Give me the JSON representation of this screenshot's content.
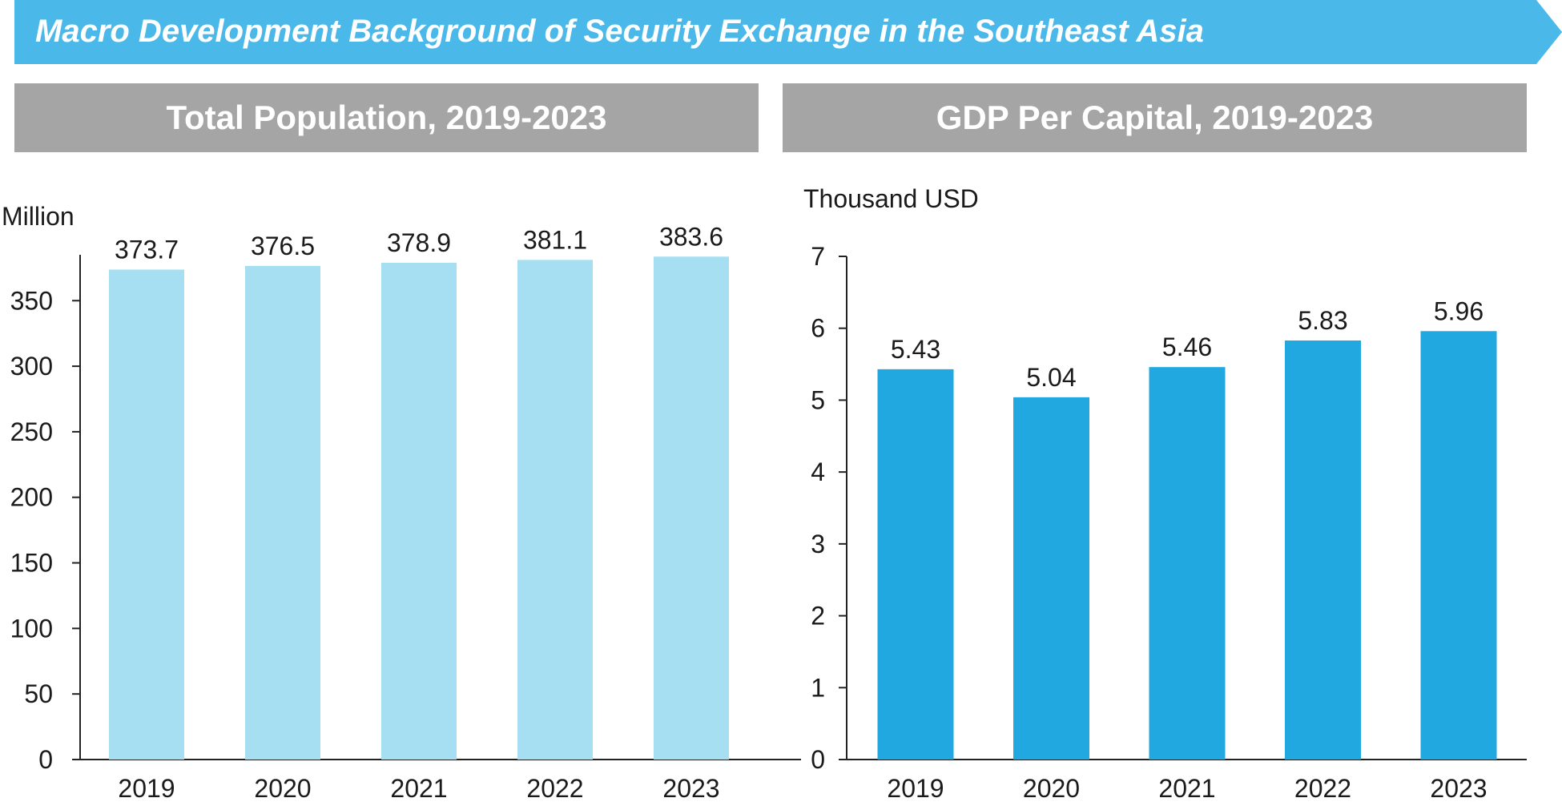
{
  "banner": {
    "title": "Macro Development Background of Security Exchange in the Southeast Asia",
    "color": "#4ab9ea"
  },
  "panels": {
    "left_title": "Total Population, 2019-2023",
    "right_title": "GDP Per Capital, 2019-2023",
    "header_color": "#a6a5a6"
  },
  "chart_data": [
    {
      "type": "bar",
      "title": "Total Population, 2019-2023",
      "unit_label": "Million",
      "categories": [
        "2019",
        "2020",
        "2021",
        "2022",
        "2023"
      ],
      "values": [
        373.7,
        376.5,
        378.9,
        381.1,
        383.6
      ],
      "data_labels": [
        "373.7",
        "376.5",
        "378.9",
        "381.1",
        "383.6"
      ],
      "ylim": [
        0,
        385
      ],
      "yticks": [
        0,
        50,
        100,
        150,
        200,
        250,
        300,
        350
      ],
      "bar_color": "#a6dff2",
      "grid": false
    },
    {
      "type": "bar",
      "title": "GDP Per Capital, 2019-2023",
      "unit_label": "Thousand USD",
      "categories": [
        "2019",
        "2020",
        "2021",
        "2022",
        "2023"
      ],
      "values": [
        5.43,
        5.04,
        5.46,
        5.83,
        5.96
      ],
      "data_labels": [
        "5.43",
        "5.04",
        "5.46",
        "5.83",
        "5.96"
      ],
      "ylim": [
        0,
        7
      ],
      "yticks": [
        0,
        1,
        2,
        3,
        4,
        5,
        6,
        7
      ],
      "bar_color": "#22a8e1",
      "grid": false
    }
  ]
}
